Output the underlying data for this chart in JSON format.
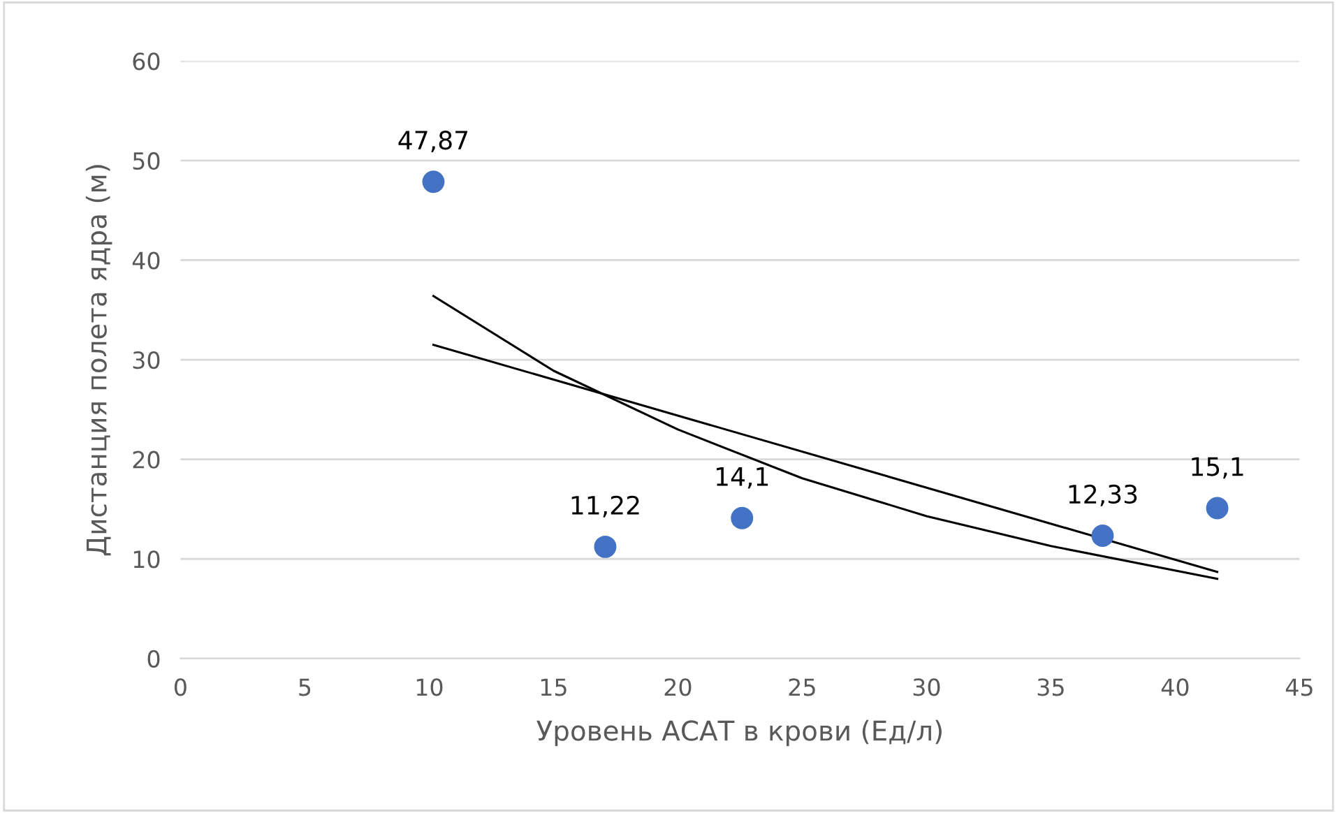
{
  "chart_data": {
    "type": "scatter",
    "xlabel": "Уровень АСАТ в крови (Ед/л)",
    "ylabel": "Дистанция полета ядра (м)",
    "xlim": [
      0,
      45
    ],
    "xticks": [
      0,
      5,
      10,
      15,
      20,
      25,
      30,
      35,
      40,
      45
    ],
    "ylim": [
      0,
      60
    ],
    "yticks": [
      0,
      10,
      20,
      30,
      40,
      50,
      60
    ],
    "grid": "y",
    "legend": false,
    "marker": "circle",
    "series": [
      {
        "color": "#4472c4",
        "x": [
          10.17,
          17.08,
          22.58,
          37.08,
          41.69
        ],
        "values": [
          47.87,
          11.22,
          14.1,
          12.33,
          15.1
        ],
        "value_labels": [
          "47,87",
          "11,22",
          "14,1",
          "12,33",
          "15,1"
        ]
      },
      {
        "type": "line",
        "marker": "none",
        "color": "#000000",
        "x": [
          10.17,
          41.69
        ],
        "values": [
          31.5,
          8.7
        ]
      },
      {
        "type": "line",
        "marker": "none",
        "color": "#000000",
        "x": [
          10.17,
          15,
          20,
          25,
          30,
          35,
          41.69
        ],
        "values": [
          36.4,
          28.9,
          23.0,
          18.1,
          14.3,
          11.3,
          8.0
        ]
      }
    ]
  }
}
